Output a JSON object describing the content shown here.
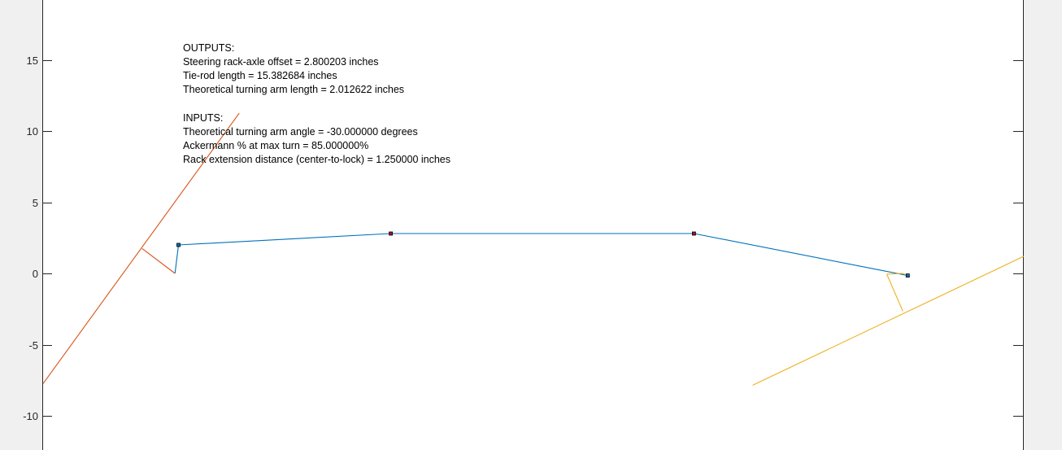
{
  "chart_data": {
    "type": "line",
    "ylim": [
      -12.4,
      19.2
    ],
    "xlim": [
      -9.5,
      60.7
    ],
    "grid": false,
    "yticks": [
      15,
      10,
      5,
      0,
      -5,
      -10
    ],
    "ytick_labels": [
      "15",
      "10",
      "5",
      "0",
      "-5",
      "-10"
    ],
    "annotations": [
      "OUTPUTS:",
      "Steering rack-axle offset = 2.800203 inches",
      "Tie-rod length = 15.382684 inches",
      "Theoretical turning arm length = 2.012622 inches",
      "INPUTS:",
      "Theoretical turning arm angle = -30.000000 degrees",
      "Ackermann % at max turn = 85.000000%",
      "Rack extension distance (center-to-lock) = 1.250000 inches"
    ],
    "series": [
      {
        "color": "#0072bd",
        "values": [
          [
            0,
            0
          ],
          [
            0.25,
            2.0
          ],
          [
            15.45,
            2.8
          ],
          [
            37.15,
            2.8
          ],
          [
            52.45,
            -0.15
          ]
        ]
      },
      {
        "color": "#d95319",
        "values": [
          [
            -9.45,
            -7.75
          ],
          [
            4.6,
            11.25
          ]
        ]
      },
      {
        "color": "#d95319",
        "values": [
          [
            -2.35,
            1.75
          ],
          [
            0,
            0
          ]
        ]
      },
      {
        "color": "#edb120",
        "values": [
          [
            41.35,
            -7.85
          ],
          [
            60.75,
            1.2
          ]
        ]
      },
      {
        "color": "#edb120",
        "values": [
          [
            50.95,
            -0.05
          ],
          [
            52.1,
            0
          ],
          [
            52.45,
            -0.15
          ]
        ]
      },
      {
        "color": "#edb120",
        "values": [
          [
            50.95,
            -0.05
          ],
          [
            52.1,
            -2.65
          ]
        ]
      }
    ],
    "markers": [
      {
        "x": 0.25,
        "y": 2.0,
        "face": "#0072bd"
      },
      {
        "x": 52.45,
        "y": -0.15,
        "face": "#0072bd"
      },
      {
        "x": 15.45,
        "y": 2.8,
        "face": "#a2142f"
      },
      {
        "x": 37.15,
        "y": 2.8,
        "face": "#a2142f"
      }
    ]
  }
}
